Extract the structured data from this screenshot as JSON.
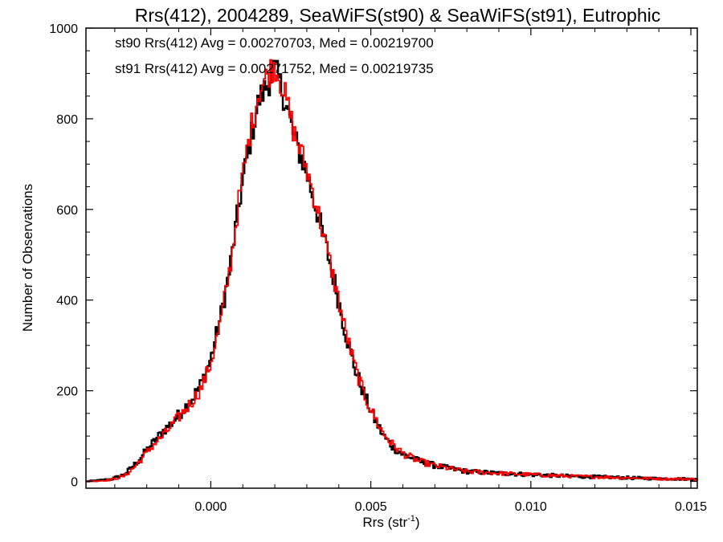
{
  "chart_data": {
    "type": "line",
    "style": "histogram-step",
    "title": "Rrs(412), 2004289, SeaWiFS(st90) & SeaWiFS(st91), Eutrophic",
    "xlabel": "Rrs (str",
    "xlabel_sup": "-1",
    "xlabel_close": ")",
    "ylabel": "Number of Observations",
    "xlim": [
      -0.0039,
      0.0152
    ],
    "ylim": [
      -15,
      1000
    ],
    "xticks": [
      0.0,
      0.005,
      0.01,
      0.015
    ],
    "xtick_labels": [
      "0.000",
      "0.005",
      "0.010",
      "0.015"
    ],
    "yticks": [
      0,
      200,
      400,
      600,
      800,
      1000
    ],
    "ytick_labels": [
      "0",
      "200",
      "400",
      "600",
      "800",
      "1000"
    ],
    "grid": false,
    "annotations": [
      {
        "text": "st90 Rrs(412) Avg = 0.00270703, Med = 0.00219700",
        "color": "#000000"
      },
      {
        "text": "st91 Rrs(412) Avg = 0.00271752, Med = 0.00219735",
        "color": "#ff0000"
      }
    ],
    "series": [
      {
        "color": "#000000",
        "x": [
          -0.0039,
          -0.0035,
          -0.0031,
          -0.0027,
          -0.0024,
          -0.0021,
          -0.0018,
          -0.0015,
          -0.0012,
          -0.0009,
          -0.0006,
          -0.0003,
          0.0,
          0.0003,
          0.0006,
          0.0009,
          0.0012,
          0.0015,
          0.0018,
          0.002,
          0.0022,
          0.0024,
          0.0026,
          0.0028,
          0.003,
          0.0033,
          0.0036,
          0.0039,
          0.0042,
          0.0045,
          0.0048,
          0.0051,
          0.0054,
          0.0057,
          0.006,
          0.0065,
          0.007,
          0.0075,
          0.008,
          0.009,
          0.01,
          0.011,
          0.012,
          0.013,
          0.014,
          0.0152
        ],
        "y": [
          0,
          2,
          5,
          15,
          35,
          60,
          85,
          110,
          130,
          155,
          180,
          215,
          270,
          360,
          470,
          620,
          740,
          840,
          880,
          910,
          870,
          820,
          760,
          720,
          680,
          600,
          520,
          430,
          330,
          250,
          190,
          140,
          100,
          75,
          60,
          45,
          35,
          28,
          22,
          18,
          15,
          12,
          10,
          8,
          6,
          5
        ]
      },
      {
        "color": "#ff0000",
        "x": [
          -0.0039,
          -0.0035,
          -0.0031,
          -0.0027,
          -0.0024,
          -0.0021,
          -0.0018,
          -0.0015,
          -0.0012,
          -0.0009,
          -0.0006,
          -0.0003,
          0.0,
          0.0003,
          0.0006,
          0.0009,
          0.0012,
          0.0015,
          0.0018,
          0.002,
          0.0022,
          0.0024,
          0.0026,
          0.0028,
          0.003,
          0.0033,
          0.0036,
          0.0039,
          0.0042,
          0.0045,
          0.0048,
          0.0051,
          0.0054,
          0.0057,
          0.006,
          0.0065,
          0.007,
          0.0075,
          0.008,
          0.009,
          0.01,
          0.011,
          0.012,
          0.013,
          0.014,
          0.0152
        ],
        "y": [
          0,
          1,
          4,
          12,
          30,
          55,
          80,
          100,
          125,
          150,
          175,
          205,
          260,
          350,
          470,
          630,
          760,
          860,
          900,
          920,
          880,
          830,
          770,
          730,
          690,
          610,
          520,
          430,
          335,
          255,
          190,
          145,
          105,
          80,
          62,
          45,
          35,
          28,
          22,
          18,
          15,
          12,
          10,
          8,
          6,
          5
        ]
      }
    ]
  }
}
